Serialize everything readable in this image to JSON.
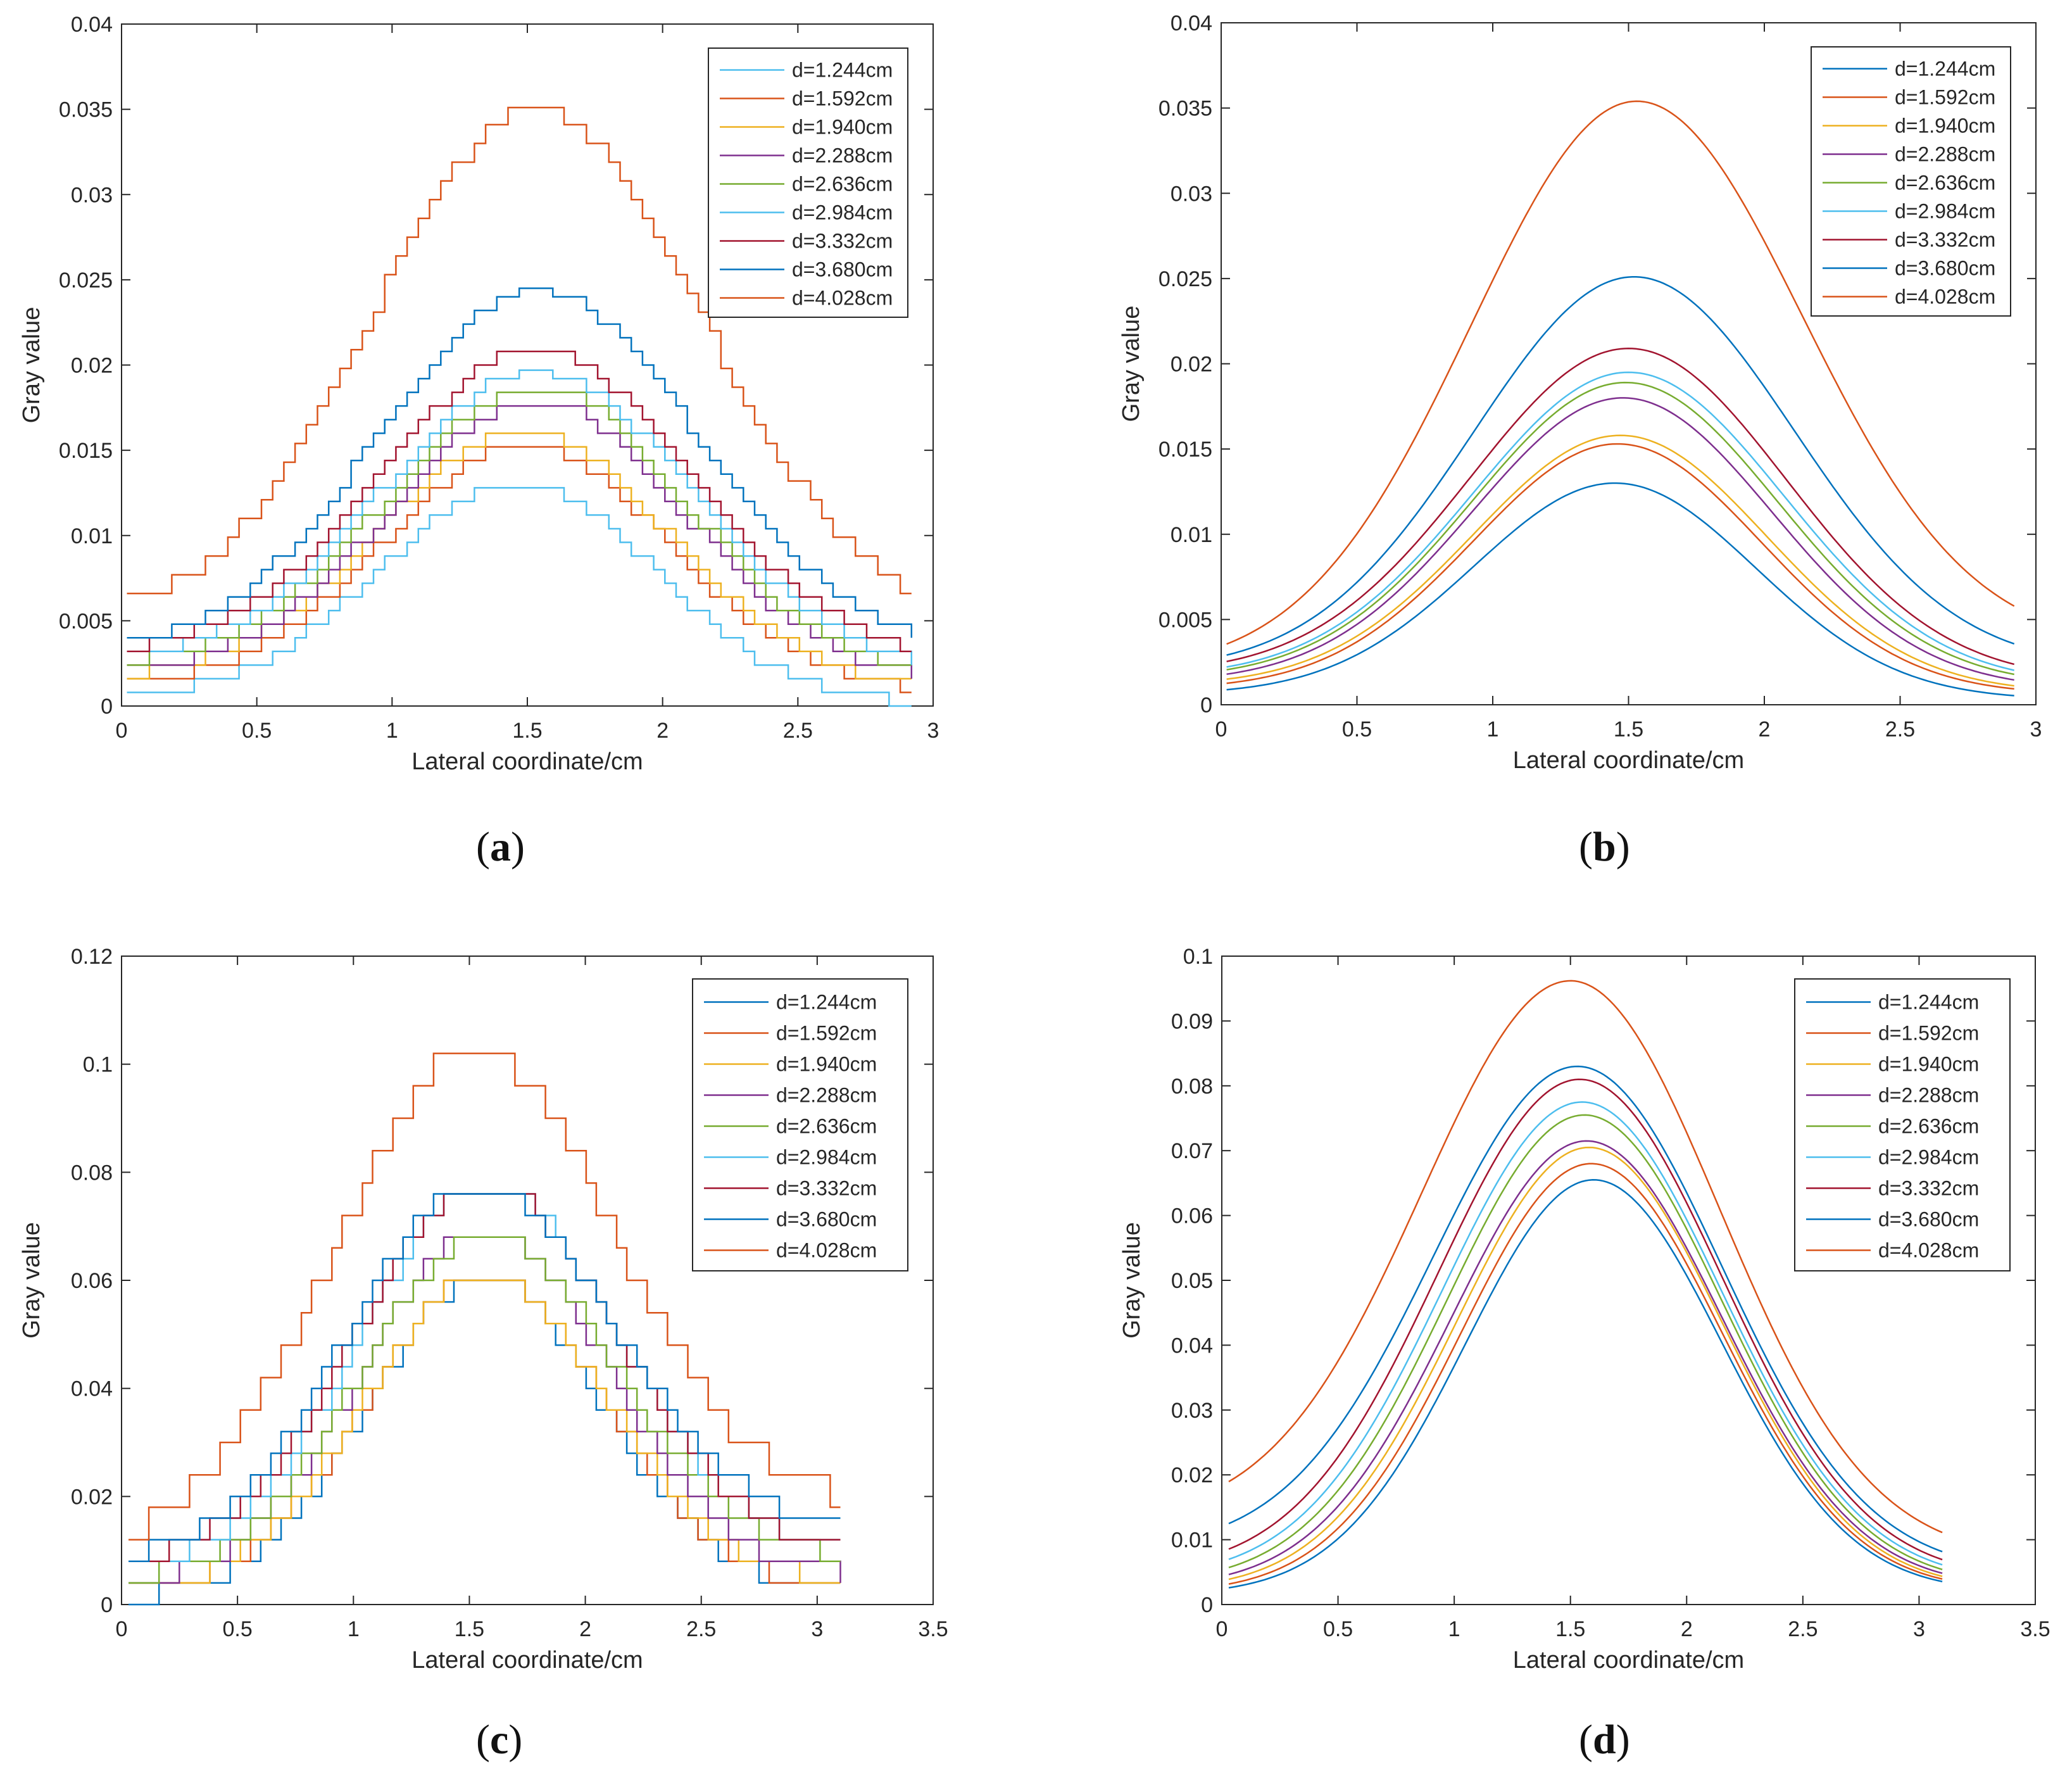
{
  "chart_data": [
    {
      "type": "line",
      "panel": "a",
      "caption": "a",
      "style": "stepped",
      "xlabel": "Lateral coordinate/cm",
      "ylabel": "Gray value",
      "xlim": [
        0,
        3
      ],
      "ylim": [
        0,
        0.04
      ],
      "xticks": [
        0,
        0.5,
        1,
        1.5,
        2,
        2.5,
        3
      ],
      "xtick_labels": [
        "0",
        "0.5",
        "1",
        "1.5",
        "2",
        "2.5",
        "3"
      ],
      "yticks": [
        0,
        0.005,
        0.01,
        0.015,
        0.02,
        0.025,
        0.03,
        0.035,
        0.04
      ],
      "ytick_labels": [
        "0",
        "0.005",
        "0.01",
        "0.015",
        "0.02",
        "0.025",
        "0.03",
        "0.035",
        "0.04"
      ],
      "x_range": [
        0.02,
        2.92
      ],
      "legend_position": "top-right",
      "series": [
        {
          "name": "d=1.244cm",
          "color": "#4DBEEE",
          "peak": 0.0132,
          "base_left": 0.0005,
          "base_right": 0.0001,
          "center": 1.45,
          "width": 0.5,
          "step": 0.0008
        },
        {
          "name": "d=1.592cm",
          "color": "#D95319",
          "peak": 0.0153,
          "base_left": 0.0012,
          "base_right": 0.0008,
          "center": 1.48,
          "width": 0.52,
          "step": 0.0008
        },
        {
          "name": "d=1.940cm",
          "color": "#EDB120",
          "peak": 0.0162,
          "base_left": 0.0015,
          "base_right": 0.001,
          "center": 1.47,
          "width": 0.53,
          "step": 0.0008
        },
        {
          "name": "d=2.288cm",
          "color": "#7E2F8E",
          "peak": 0.0179,
          "base_left": 0.0018,
          "base_right": 0.0013,
          "center": 1.52,
          "width": 0.54,
          "step": 0.0008
        },
        {
          "name": "d=2.636cm",
          "color": "#77AC30",
          "peak": 0.0188,
          "base_left": 0.0022,
          "base_right": 0.0015,
          "center": 1.52,
          "width": 0.55,
          "step": 0.0008
        },
        {
          "name": "d=2.984cm",
          "color": "#4DBEEE",
          "peak": 0.0197,
          "base_left": 0.0025,
          "base_right": 0.002,
          "center": 1.52,
          "width": 0.56,
          "step": 0.0008
        },
        {
          "name": "d=3.332cm",
          "color": "#A2142F",
          "peak": 0.0209,
          "base_left": 0.0028,
          "base_right": 0.0025,
          "center": 1.52,
          "width": 0.57,
          "step": 0.0008
        },
        {
          "name": "d=3.680cm",
          "color": "#0072BD",
          "peak": 0.0245,
          "base_left": 0.003,
          "base_right": 0.0032,
          "center": 1.52,
          "width": 0.58,
          "step": 0.0008
        },
        {
          "name": "d=4.028cm",
          "color": "#D95319",
          "peak": 0.0351,
          "base_left": 0.0048,
          "base_right": 0.0048,
          "center": 1.52,
          "width": 0.6,
          "step": 0.0011
        }
      ]
    },
    {
      "type": "line",
      "panel": "b",
      "caption": "b",
      "style": "smooth",
      "xlabel": "Lateral coordinate/cm",
      "ylabel": "Gray value",
      "xlim": [
        0,
        3
      ],
      "ylim": [
        0,
        0.04
      ],
      "xticks": [
        0,
        0.5,
        1,
        1.5,
        2,
        2.5,
        3
      ],
      "xtick_labels": [
        "0",
        "0.5",
        "1",
        "1.5",
        "2",
        "2.5",
        "3"
      ],
      "yticks": [
        0,
        0.005,
        0.01,
        0.015,
        0.02,
        0.025,
        0.03,
        0.035,
        0.04
      ],
      "ytick_labels": [
        "0",
        "0.005",
        "0.01",
        "0.015",
        "0.02",
        "0.025",
        "0.03",
        "0.035",
        "0.04"
      ],
      "x_range": [
        0.02,
        2.92
      ],
      "legend_position": "top-right",
      "series": [
        {
          "name": "d=1.244cm",
          "color": "#0072BD",
          "peak": 0.013,
          "base_left": 0.0006,
          "base_right": 0.0003,
          "center": 1.45,
          "width": 0.52
        },
        {
          "name": "d=1.592cm",
          "color": "#D95319",
          "peak": 0.0153,
          "base_left": 0.0009,
          "base_right": 0.0006,
          "center": 1.46,
          "width": 0.53
        },
        {
          "name": "d=1.940cm",
          "color": "#EDB120",
          "peak": 0.0158,
          "base_left": 0.0011,
          "base_right": 0.0007,
          "center": 1.47,
          "width": 0.54
        },
        {
          "name": "d=2.288cm",
          "color": "#7E2F8E",
          "peak": 0.018,
          "base_left": 0.0013,
          "base_right": 0.0009,
          "center": 1.48,
          "width": 0.55
        },
        {
          "name": "d=2.636cm",
          "color": "#77AC30",
          "peak": 0.0189,
          "base_left": 0.0015,
          "base_right": 0.0011,
          "center": 1.49,
          "width": 0.56
        },
        {
          "name": "d=2.984cm",
          "color": "#4DBEEE",
          "peak": 0.0195,
          "base_left": 0.0016,
          "base_right": 0.0012,
          "center": 1.5,
          "width": 0.57
        },
        {
          "name": "d=3.332cm",
          "color": "#A2142F",
          "peak": 0.0209,
          "base_left": 0.0018,
          "base_right": 0.0014,
          "center": 1.5,
          "width": 0.58
        },
        {
          "name": "d=3.680cm",
          "color": "#0072BD",
          "peak": 0.0251,
          "base_left": 0.002,
          "base_right": 0.0022,
          "center": 1.52,
          "width": 0.59
        },
        {
          "name": "d=4.028cm",
          "color": "#D95319",
          "peak": 0.0354,
          "base_left": 0.002,
          "base_right": 0.0034,
          "center": 1.53,
          "width": 0.61
        }
      ]
    },
    {
      "type": "line",
      "panel": "c",
      "caption": "c",
      "style": "stepped",
      "xlabel": "Lateral coordinate/cm",
      "ylabel": "Gray value",
      "xlim": [
        0,
        3.5
      ],
      "ylim": [
        0,
        0.12
      ],
      "xticks": [
        0,
        0.5,
        1,
        1.5,
        2,
        2.5,
        3,
        3.5
      ],
      "xtick_labels": [
        "0",
        "0.5",
        "1",
        "1.5",
        "2",
        "2.5",
        "3",
        "3.5"
      ],
      "yticks": [
        0,
        0.02,
        0.04,
        0.06,
        0.08,
        0.1,
        0.12
      ],
      "ytick_labels": [
        "0",
        "0.02",
        "0.04",
        "0.06",
        "0.08",
        "0.1",
        "0.12"
      ],
      "x_range": [
        0.03,
        3.1
      ],
      "legend_position": "top-right",
      "series": [
        {
          "name": "d=1.244cm",
          "color": "#0072BD",
          "peak": 0.061,
          "base_left": 0.001,
          "base_right": 0.002,
          "center": 1.55,
          "width": 0.5,
          "step": 0.004
        },
        {
          "name": "d=1.592cm",
          "color": "#D95319",
          "peak": 0.061,
          "base_left": 0.002,
          "base_right": 0.003,
          "center": 1.55,
          "width": 0.51,
          "step": 0.004
        },
        {
          "name": "d=1.940cm",
          "color": "#EDB120",
          "peak": 0.061,
          "base_left": 0.002,
          "base_right": 0.004,
          "center": 1.55,
          "width": 0.52,
          "step": 0.004
        },
        {
          "name": "d=2.288cm",
          "color": "#7E2F8E",
          "peak": 0.069,
          "base_left": 0.003,
          "base_right": 0.005,
          "center": 1.55,
          "width": 0.53,
          "step": 0.004
        },
        {
          "name": "d=2.636cm",
          "color": "#77AC30",
          "peak": 0.069,
          "base_left": 0.004,
          "base_right": 0.008,
          "center": 1.56,
          "width": 0.54,
          "step": 0.004
        },
        {
          "name": "d=2.984cm",
          "color": "#4DBEEE",
          "peak": 0.078,
          "base_left": 0.005,
          "base_right": 0.009,
          "center": 1.56,
          "width": 0.55,
          "step": 0.004
        },
        {
          "name": "d=3.332cm",
          "color": "#A2142F",
          "peak": 0.078,
          "base_left": 0.006,
          "base_right": 0.009,
          "center": 1.55,
          "width": 0.56,
          "step": 0.004
        },
        {
          "name": "d=3.680cm",
          "color": "#0072BD",
          "peak": 0.078,
          "base_left": 0.007,
          "base_right": 0.013,
          "center": 1.53,
          "width": 0.57,
          "step": 0.004
        },
        {
          "name": "d=4.028cm",
          "color": "#D95319",
          "peak": 0.103,
          "base_left": 0.009,
          "base_right": 0.018,
          "center": 1.5,
          "width": 0.6,
          "step": 0.006
        }
      ]
    },
    {
      "type": "line",
      "panel": "d",
      "caption": "d",
      "style": "smooth",
      "xlabel": "Lateral coordinate/cm",
      "ylabel": "Gray value",
      "xlim": [
        0,
        3.5
      ],
      "ylim": [
        0,
        0.1
      ],
      "xticks": [
        0,
        0.5,
        1,
        1.5,
        2,
        2.5,
        3,
        3.5
      ],
      "xtick_labels": [
        "0",
        "0.5",
        "1",
        "1.5",
        "2",
        "2.5",
        "3",
        "3.5"
      ],
      "yticks": [
        0,
        0.01,
        0.02,
        0.03,
        0.04,
        0.05,
        0.06,
        0.07,
        0.08,
        0.09,
        0.1
      ],
      "ytick_labels": [
        "0",
        "0.01",
        "0.02",
        "0.03",
        "0.04",
        "0.05",
        "0.06",
        "0.07",
        "0.08",
        "0.09",
        "0.1"
      ],
      "x_range": [
        0.03,
        3.1
      ],
      "legend_position": "top-right",
      "series": [
        {
          "name": "d=1.244cm",
          "color": "#0072BD",
          "peak": 0.0655,
          "base_left": 0.0015,
          "base_right": 0.002,
          "center": 1.6,
          "width": 0.55
        },
        {
          "name": "d=1.592cm",
          "color": "#D95319",
          "peak": 0.068,
          "base_left": 0.0018,
          "base_right": 0.0022,
          "center": 1.59,
          "width": 0.56
        },
        {
          "name": "d=1.940cm",
          "color": "#EDB120",
          "peak": 0.0705,
          "base_left": 0.0022,
          "base_right": 0.0024,
          "center": 1.58,
          "width": 0.57
        },
        {
          "name": "d=2.288cm",
          "color": "#7E2F8E",
          "peak": 0.0715,
          "base_left": 0.0026,
          "base_right": 0.0027,
          "center": 1.57,
          "width": 0.58
        },
        {
          "name": "d=2.636cm",
          "color": "#77AC30",
          "peak": 0.0755,
          "base_left": 0.0032,
          "base_right": 0.003,
          "center": 1.56,
          "width": 0.59
        },
        {
          "name": "d=2.984cm",
          "color": "#4DBEEE",
          "peak": 0.0775,
          "base_left": 0.004,
          "base_right": 0.0035,
          "center": 1.55,
          "width": 0.6
        },
        {
          "name": "d=3.332cm",
          "color": "#A2142F",
          "peak": 0.081,
          "base_left": 0.005,
          "base_right": 0.004,
          "center": 1.54,
          "width": 0.61
        },
        {
          "name": "d=3.680cm",
          "color": "#0072BD",
          "peak": 0.083,
          "base_left": 0.0085,
          "base_right": 0.005,
          "center": 1.53,
          "width": 0.62
        },
        {
          "name": "d=4.028cm",
          "color": "#D95319",
          "peak": 0.0962,
          "base_left": 0.013,
          "base_right": 0.0072,
          "center": 1.5,
          "width": 0.64
        }
      ]
    }
  ]
}
